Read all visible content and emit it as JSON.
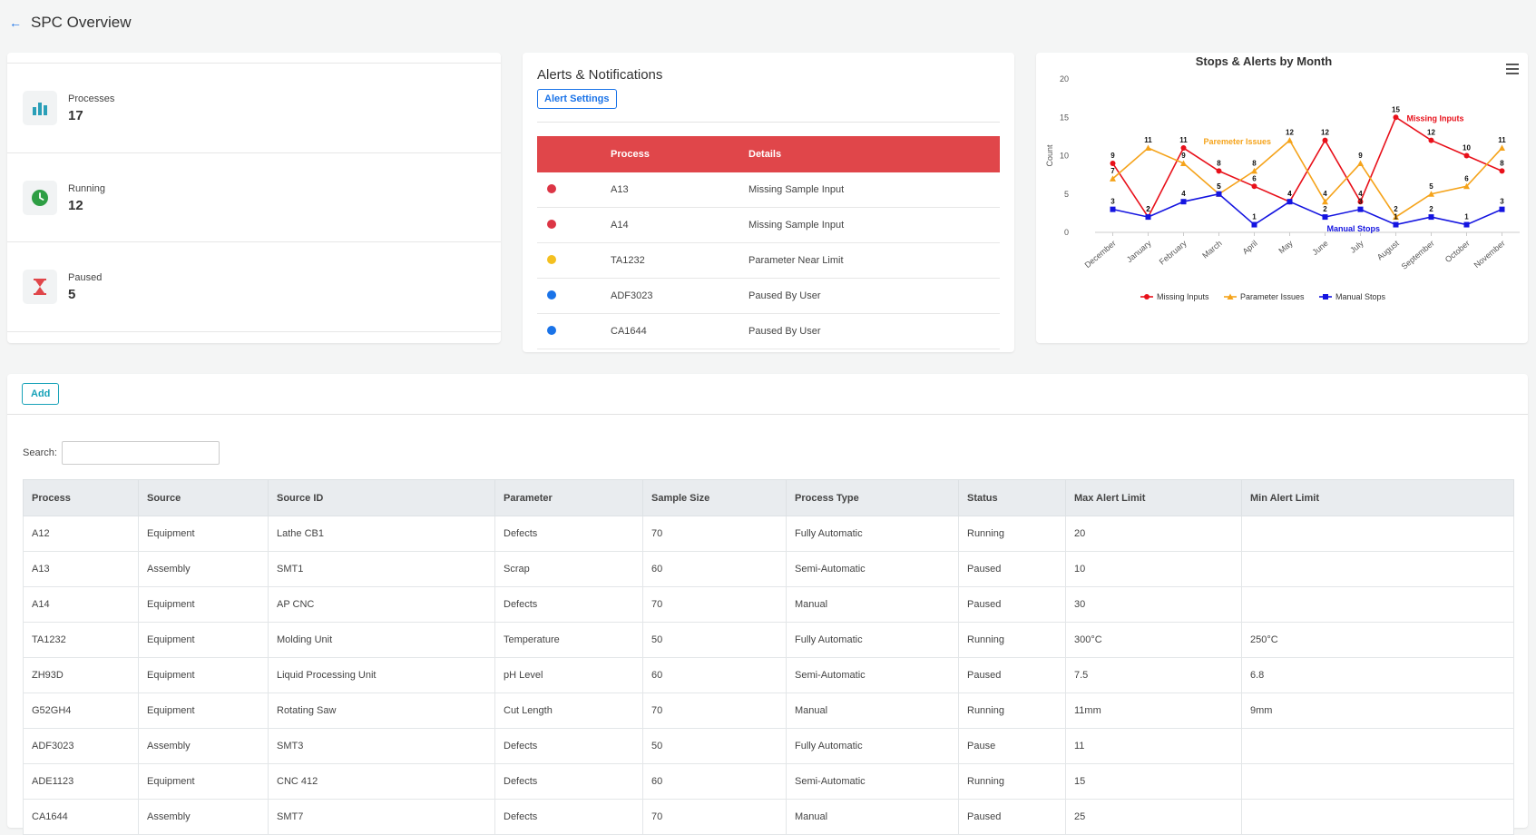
{
  "header": {
    "back_icon": "left-arrow-icon",
    "title": "SPC Overview"
  },
  "stats": [
    {
      "label": "Processes",
      "value": "17",
      "icon": "bar-chart-icon",
      "color": "#2a9fb8"
    },
    {
      "label": "Running",
      "value": "12",
      "icon": "clock-icon",
      "color": "#2e9e44"
    },
    {
      "label": "Paused",
      "value": "5",
      "icon": "hourglass-icon",
      "color": "#e0464a"
    }
  ],
  "alerts": {
    "title": "Alerts & Notifications",
    "settings_button": "Alert Settings",
    "columns": [
      "",
      "Process",
      "Details"
    ],
    "rows": [
      {
        "color": "#dc3545",
        "process": "A13",
        "details": "Missing Sample Input"
      },
      {
        "color": "#dc3545",
        "process": "A14",
        "details": "Missing Sample Input"
      },
      {
        "color": "#f4c020",
        "process": "TA1232",
        "details": "Parameter Near Limit"
      },
      {
        "color": "#1a73e8",
        "process": "ADF3023",
        "details": "Paused By User"
      },
      {
        "color": "#1a73e8",
        "process": "CA1644",
        "details": "Paused By User"
      }
    ]
  },
  "chart_data": {
    "type": "line",
    "title": "Stops & Alerts by Month",
    "ylabel": "Count",
    "ylim": [
      0,
      20
    ],
    "yticks": [
      0,
      5,
      10,
      15,
      20
    ],
    "grid": false,
    "legend_position": "bottom",
    "categories": [
      "December",
      "January",
      "February",
      "March",
      "April",
      "May",
      "June",
      "July",
      "August",
      "September",
      "October",
      "November"
    ],
    "series": [
      {
        "name": "Missing Inputs",
        "color": "#e8101a",
        "marker": "circle",
        "values": [
          9,
          2,
          11,
          8,
          6,
          4,
          12,
          4,
          15,
          12,
          10,
          8
        ],
        "annotation": "Missing Inputs"
      },
      {
        "name": "Parameter Issues",
        "color": "#f5a31a",
        "marker": "triangle",
        "values": [
          7,
          11,
          9,
          5,
          8,
          12,
          4,
          9,
          2,
          5,
          6,
          11
        ],
        "annotation": "Paremeter Issues"
      },
      {
        "name": "Manual Stops",
        "color": "#1414e0",
        "marker": "square",
        "values": [
          3,
          2,
          4,
          5,
          1,
          4,
          2,
          3,
          1,
          2,
          1,
          3
        ],
        "annotation": "Manual Stops"
      }
    ]
  },
  "table": {
    "add_button": "Add",
    "search_label": "Search:",
    "search_value": "",
    "columns": [
      "Process",
      "Source",
      "Source ID",
      "Parameter",
      "Sample Size",
      "Process Type",
      "Status",
      "Max Alert Limit",
      "Min Alert Limit"
    ],
    "rows": [
      [
        "A12",
        "Equipment",
        "Lathe CB1",
        "Defects",
        "70",
        "Fully Automatic",
        "Running",
        "20",
        ""
      ],
      [
        "A13",
        "Assembly",
        "SMT1",
        "Scrap",
        "60",
        "Semi-Automatic",
        "Paused",
        "10",
        ""
      ],
      [
        "A14",
        "Equipment",
        "AP CNC",
        "Defects",
        "70",
        "Manual",
        "Paused",
        "30",
        ""
      ],
      [
        "TA1232",
        "Equipment",
        "Molding Unit",
        "Temperature",
        "50",
        "Fully Automatic",
        "Running",
        "300°C",
        "250°C"
      ],
      [
        "ZH93D",
        "Equipment",
        "Liquid Processing Unit",
        "pH Level",
        "60",
        "Semi-Automatic",
        "Paused",
        "7.5",
        "6.8"
      ],
      [
        "G52GH4",
        "Equipment",
        "Rotating Saw",
        "Cut Length",
        "70",
        "Manual",
        "Running",
        "11mm",
        "9mm"
      ],
      [
        "ADF3023",
        "Assembly",
        "SMT3",
        "Defects",
        "50",
        "Fully Automatic",
        "Pause",
        "11",
        ""
      ],
      [
        "ADE1123",
        "Equipment",
        "CNC 412",
        "Defects",
        "60",
        "Semi-Automatic",
        "Running",
        "15",
        ""
      ],
      [
        "CA1644",
        "Assembly",
        "SMT7",
        "Defects",
        "70",
        "Manual",
        "Paused",
        "25",
        ""
      ]
    ]
  }
}
